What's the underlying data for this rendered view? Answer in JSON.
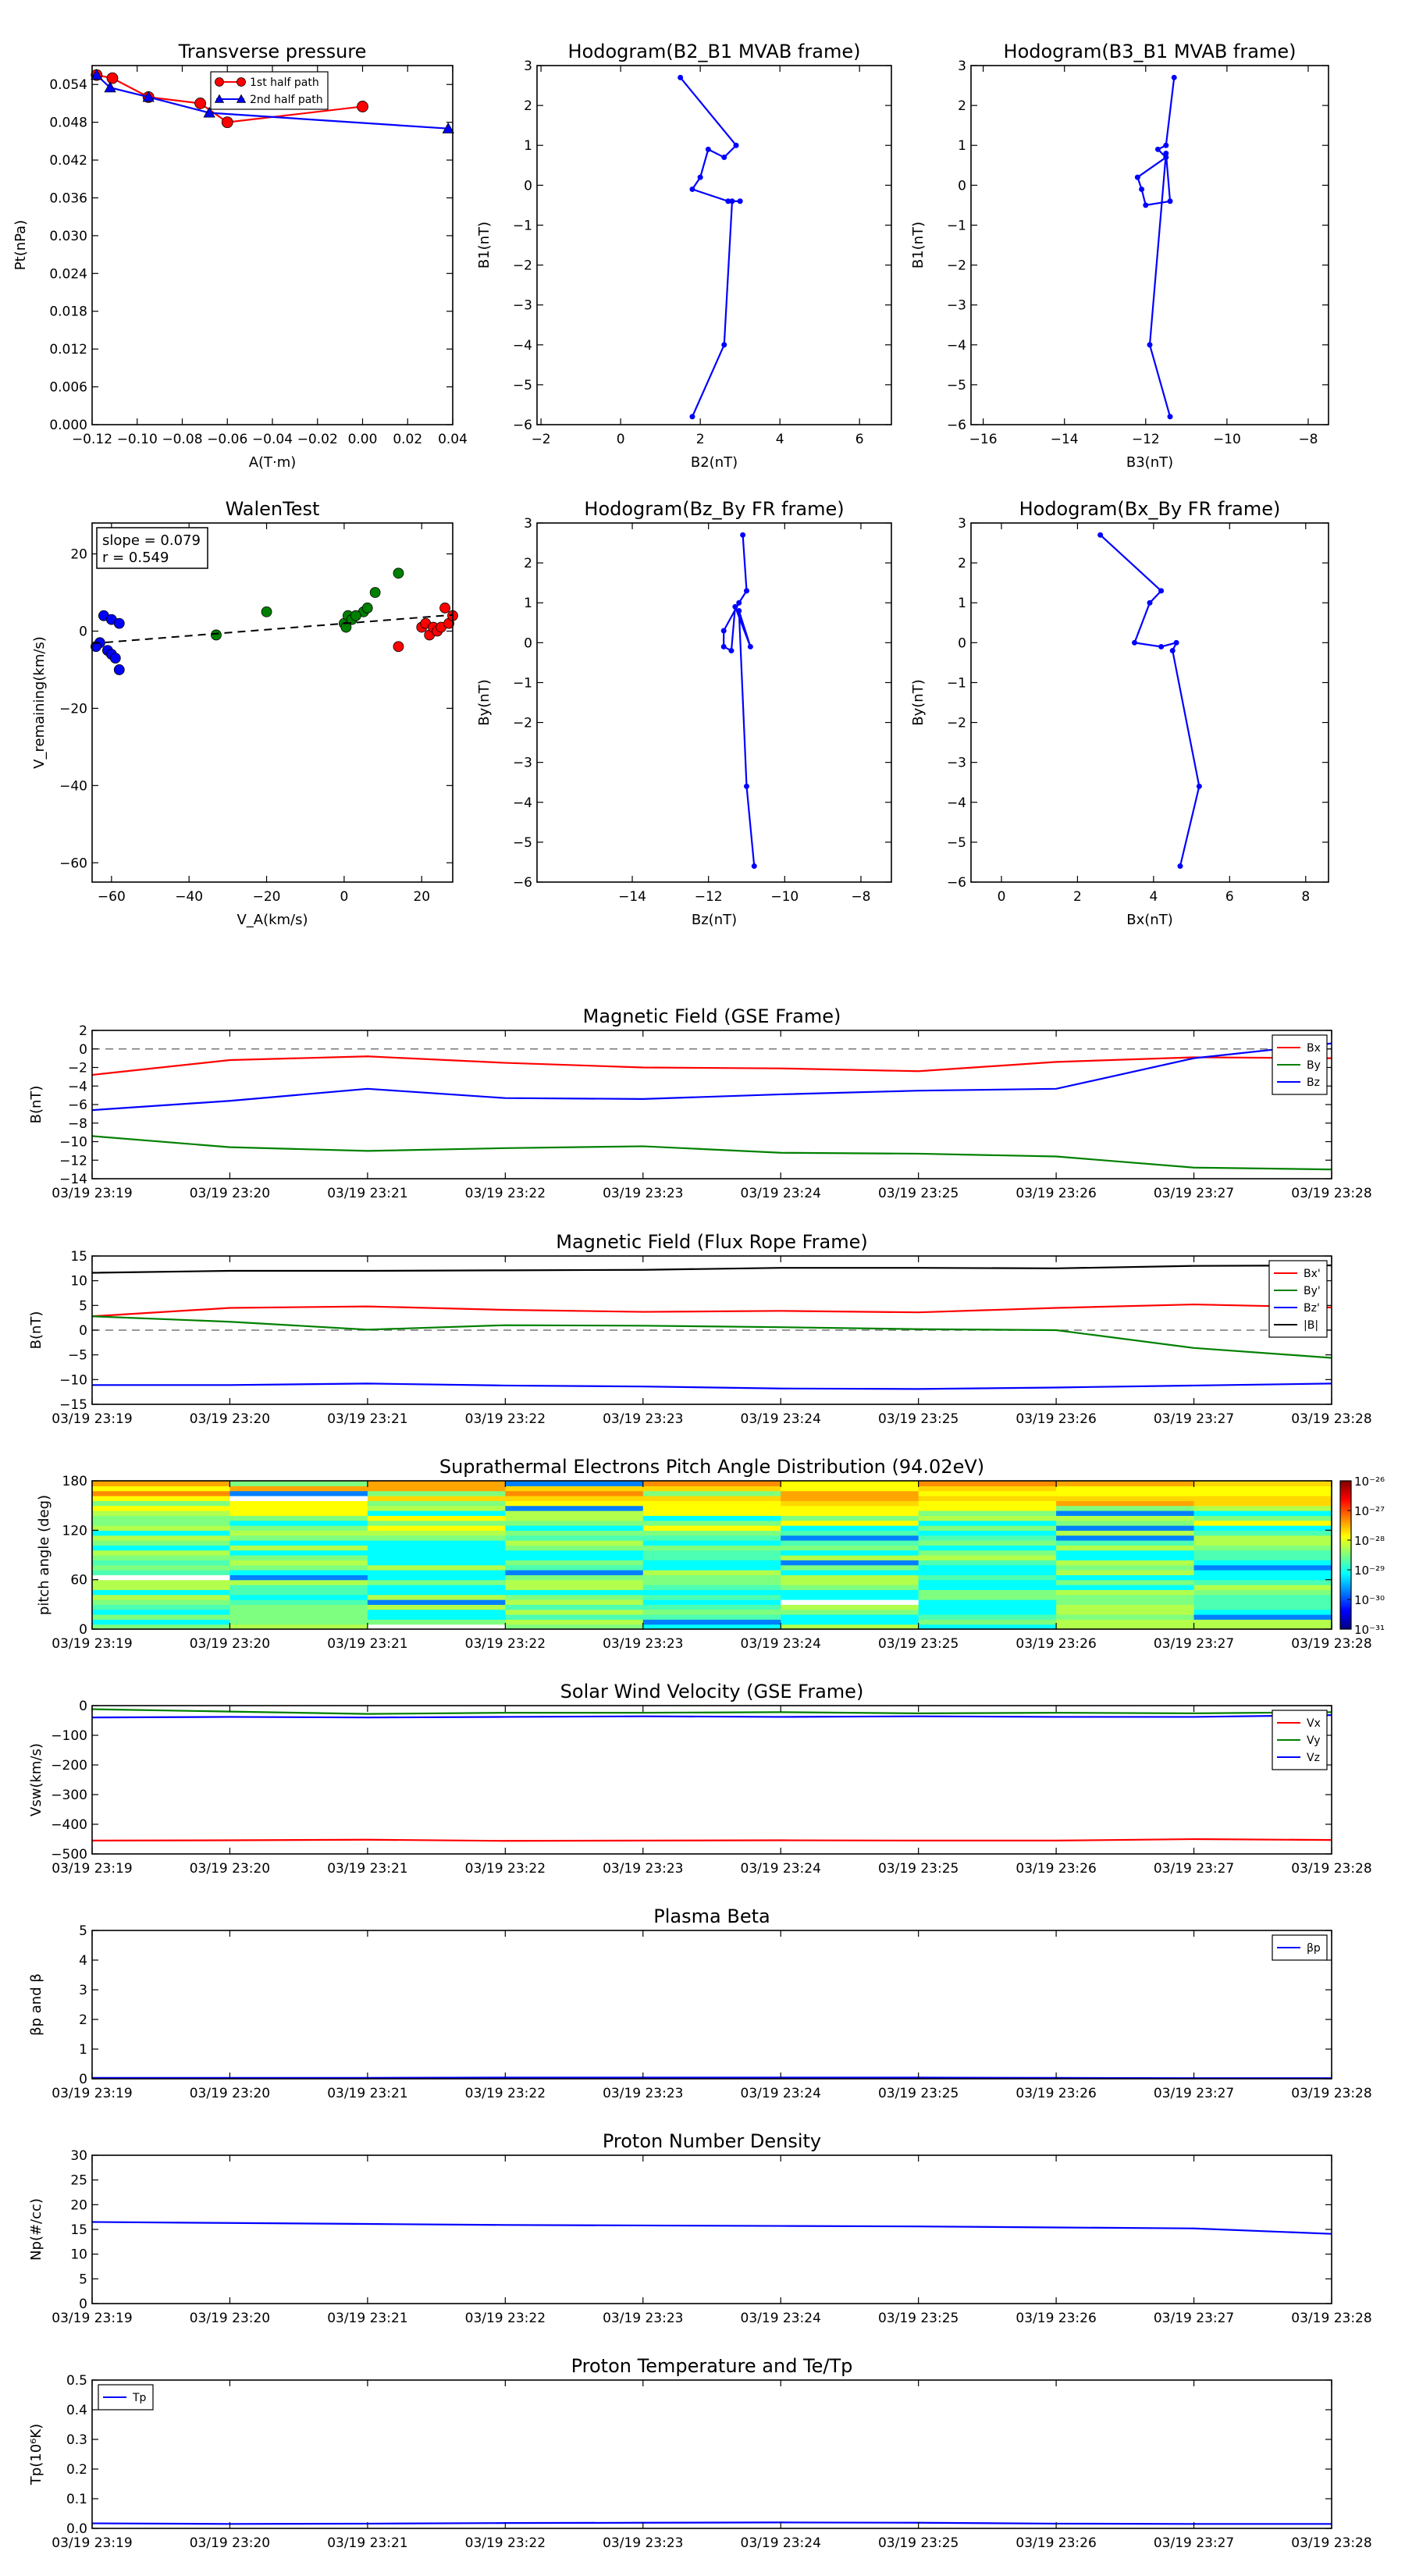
{
  "chart_data": [
    {
      "id": "pt",
      "type": "line",
      "title": "Transverse pressure",
      "xlabel": "A(T·m)",
      "ylabel": "Pt(nPa)",
      "xlim": [
        -0.12,
        0.04
      ],
      "ylim": [
        0.0,
        0.057
      ],
      "xticks": [
        -0.12,
        -0.1,
        -0.08,
        -0.06,
        -0.04,
        -0.02,
        0.0,
        0.02,
        0.04
      ],
      "xtick_labels": [
        "−0.12",
        "−0.10",
        "−0.08",
        "−0.06",
        "−0.04",
        "−0.02",
        "0.00",
        "0.02",
        "0.04"
      ],
      "yticks": [
        0.0,
        0.006,
        0.012,
        0.018,
        0.024,
        0.03,
        0.036,
        0.042,
        0.048,
        0.054
      ],
      "ytick_labels": [
        "0.000",
        "0.006",
        "0.012",
        "0.018",
        "0.024",
        "0.030",
        "0.036",
        "0.042",
        "0.048",
        "0.054"
      ],
      "legend": "top-center",
      "series": [
        {
          "name": "1st half path",
          "color": "#ff0000",
          "marker": "circle",
          "x": [
            -0.118,
            -0.111,
            -0.095,
            -0.072,
            -0.06,
            0.0
          ],
          "y": [
            0.0555,
            0.055,
            0.052,
            0.051,
            0.048,
            0.0505
          ]
        },
        {
          "name": "2nd half path",
          "color": "#0000ff",
          "marker": "triangle",
          "x": [
            -0.118,
            -0.112,
            -0.095,
            -0.068,
            0.038
          ],
          "y": [
            0.0555,
            0.0535,
            0.052,
            0.0495,
            0.047
          ]
        }
      ]
    },
    {
      "id": "h1",
      "type": "line",
      "title": "Hodogram(B2_B1 MVAB frame)",
      "xlabel": "B2(nT)",
      "ylabel": "B1(nT)",
      "xlim": [
        -2.1,
        6.8
      ],
      "ylim": [
        -6,
        3
      ],
      "xticks": [
        -2,
        0,
        2,
        4,
        6
      ],
      "xtick_labels": [
        "−2",
        "0",
        "2",
        "4",
        "6"
      ],
      "yticks": [
        -6,
        -5,
        -4,
        -3,
        -2,
        -1,
        0,
        1,
        2,
        3
      ],
      "ytick_labels": [
        "−6",
        "−5",
        "−4",
        "−3",
        "−2",
        "−1",
        "0",
        "1",
        "2",
        "3"
      ],
      "series": [
        {
          "color": "#0000ff",
          "x": [
            1.5,
            2.9,
            2.6,
            2.2,
            2.0,
            1.8,
            2.7,
            3.0,
            2.8,
            2.6,
            1.8
          ],
          "y": [
            2.7,
            1.0,
            0.7,
            0.9,
            0.2,
            -0.1,
            -0.4,
            -0.4,
            -0.4,
            -4.0,
            -5.8
          ]
        }
      ]
    },
    {
      "id": "h2",
      "type": "line",
      "title": "Hodogram(B3_B1 MVAB frame)",
      "xlabel": "B3(nT)",
      "ylabel": "B1(nT)",
      "xlim": [
        -16.3,
        -7.5
      ],
      "ylim": [
        -6,
        3
      ],
      "xticks": [
        -16,
        -14,
        -12,
        -10,
        -8
      ],
      "xtick_labels": [
        "−16",
        "−14",
        "−12",
        "−10",
        "−8"
      ],
      "yticks": [
        -6,
        -5,
        -4,
        -3,
        -2,
        -1,
        0,
        1,
        2,
        3
      ],
      "ytick_labels": [
        "−6",
        "−5",
        "−4",
        "−3",
        "−2",
        "−1",
        "0",
        "1",
        "2",
        "3"
      ],
      "series": [
        {
          "color": "#0000ff",
          "x": [
            -11.3,
            -11.5,
            -11.7,
            -11.5,
            -12.2,
            -12.1,
            -12.0,
            -11.4,
            -11.5,
            -11.9,
            -11.4
          ],
          "y": [
            2.7,
            1.0,
            0.9,
            0.7,
            0.2,
            -0.1,
            -0.5,
            -0.4,
            0.8,
            -4.0,
            -5.8
          ]
        }
      ]
    },
    {
      "id": "walen",
      "type": "scatter",
      "title": "WalenTest",
      "xlabel": "V_A(km/s)",
      "ylabel": "V_remaining(km/s)",
      "xlim": [
        -65,
        28
      ],
      "ylim": [
        -65,
        28
      ],
      "xticks": [
        -60,
        -40,
        -20,
        0,
        20
      ],
      "xtick_labels": [
        "−60",
        "−40",
        "−20",
        "0",
        "20"
      ],
      "yticks": [
        -60,
        -40,
        -20,
        0,
        20
      ],
      "ytick_labels": [
        "−60",
        "−40",
        "−20",
        "0",
        "20"
      ],
      "annotation_lines": [
        "slope = 0.079",
        "r = 0.549"
      ],
      "fit": {
        "slope": 0.079,
        "x": [
          -65,
          28
        ],
        "y": [
          -3.2,
          4.2
        ]
      },
      "series": [
        {
          "color": "#0000ff",
          "x": [
            -62,
            -60,
            -58,
            -63,
            -61,
            -60,
            -59,
            -58,
            -64
          ],
          "y": [
            4,
            3,
            2,
            -3,
            -5,
            -6,
            -7,
            -10,
            -4
          ]
        },
        {
          "color": "#008000",
          "x": [
            -33,
            -20,
            0,
            1,
            2,
            5,
            6,
            8,
            14,
            0.5,
            3
          ],
          "y": [
            -1,
            5,
            2,
            4,
            3,
            5,
            6,
            10,
            15,
            1,
            4
          ]
        },
        {
          "color": "#ff0000",
          "x": [
            14,
            20,
            21,
            22,
            23,
            24,
            25,
            26,
            27,
            28
          ],
          "y": [
            -4,
            1,
            2,
            -1,
            1,
            0,
            1,
            6,
            2,
            4
          ]
        }
      ]
    },
    {
      "id": "h3",
      "type": "line",
      "title": "Hodogram(Bz_By FR frame)",
      "xlabel": "Bz(nT)",
      "ylabel": "By(nT)",
      "xlim": [
        -16.5,
        -7.2
      ],
      "ylim": [
        -6,
        3
      ],
      "xticks": [
        -14,
        -12,
        -10,
        -8
      ],
      "xtick_labels": [
        "−14",
        "−12",
        "−10",
        "−8"
      ],
      "yticks": [
        -6,
        -5,
        -4,
        -3,
        -2,
        -1,
        0,
        1,
        2,
        3
      ],
      "ytick_labels": [
        "−6",
        "−5",
        "−4",
        "−3",
        "−2",
        "−1",
        "0",
        "1",
        "2",
        "3"
      ],
      "series": [
        {
          "color": "#0000ff",
          "x": [
            -11.1,
            -11.0,
            -11.2,
            -11.6,
            -11.6,
            -11.4,
            -11.3,
            -10.9,
            -11.2,
            -11.0,
            -10.8
          ],
          "y": [
            2.7,
            1.3,
            1.0,
            0.3,
            -0.1,
            -0.2,
            0.9,
            -0.1,
            0.8,
            -3.6,
            -5.6
          ]
        }
      ]
    },
    {
      "id": "h4",
      "type": "line",
      "title": "Hodogram(Bx_By FR frame)",
      "xlabel": "Bx(nT)",
      "ylabel": "By(nT)",
      "xlim": [
        -0.8,
        8.6
      ],
      "ylim": [
        -6,
        3
      ],
      "xticks": [
        0,
        2,
        4,
        6,
        8
      ],
      "xtick_labels": [
        "0",
        "2",
        "4",
        "6",
        "8"
      ],
      "yticks": [
        -6,
        -5,
        -4,
        -3,
        -2,
        -1,
        0,
        1,
        2,
        3
      ],
      "ytick_labels": [
        "−6",
        "−5",
        "−4",
        "−3",
        "−2",
        "−1",
        "0",
        "1",
        "2",
        "3"
      ],
      "series": [
        {
          "color": "#0000ff",
          "x": [
            2.6,
            4.2,
            3.9,
            3.5,
            4.2,
            4.6,
            4.5,
            5.2,
            4.7
          ],
          "y": [
            2.7,
            1.3,
            1.0,
            0.0,
            -0.1,
            0.0,
            -0.2,
            -3.6,
            -5.6
          ]
        }
      ]
    },
    {
      "id": "bgse",
      "type": "line",
      "title": "Magnetic Field (GSE Frame)",
      "ylabel": "B(nT)",
      "ylim": [
        -14,
        2
      ],
      "yticks": [
        -14,
        -12,
        -10,
        -8,
        -6,
        -4,
        -2,
        0,
        2
      ],
      "ytick_labels": [
        "−14",
        "−12",
        "−10",
        "−8",
        "−6",
        "−4",
        "−2",
        "0",
        "2"
      ],
      "xticks": [
        "03/19 23:19",
        "03/19 23:20",
        "03/19 23:21",
        "03/19 23:22",
        "03/19 23:23",
        "03/19 23:24",
        "03/19 23:25",
        "03/19 23:26",
        "03/19 23:27",
        "03/19 23:28"
      ],
      "zero_line": true,
      "legend": "top-right",
      "x": [
        0,
        1,
        2,
        3,
        4,
        5,
        6,
        7,
        8,
        9
      ],
      "series": [
        {
          "name": "Bx",
          "color": "#ff0000",
          "values": [
            -2.8,
            -1.2,
            -0.8,
            -1.5,
            -2.0,
            -2.1,
            -2.4,
            -1.4,
            -0.9,
            -1.0
          ]
        },
        {
          "name": "By",
          "color": "#008000",
          "values": [
            -9.4,
            -10.6,
            -11.0,
            -10.7,
            -10.5,
            -11.2,
            -11.3,
            -11.6,
            -12.8,
            -13.0
          ]
        },
        {
          "name": "Bz",
          "color": "#0000ff",
          "values": [
            -6.6,
            -5.6,
            -4.3,
            -5.3,
            -5.4,
            -4.9,
            -4.5,
            -4.3,
            -1.0,
            0.6
          ]
        }
      ]
    },
    {
      "id": "bfr",
      "type": "line",
      "title": "Magnetic Field (Flux Rope Frame)",
      "ylabel": "B(nT)",
      "ylim": [
        -15,
        15
      ],
      "yticks": [
        -15,
        -10,
        -5,
        0,
        5,
        10,
        15
      ],
      "ytick_labels": [
        "−15",
        "−10",
        "−5",
        "0",
        "5",
        "10",
        "15"
      ],
      "xticks": [
        "03/19 23:19",
        "03/19 23:20",
        "03/19 23:21",
        "03/19 23:22",
        "03/19 23:23",
        "03/19 23:24",
        "03/19 23:25",
        "03/19 23:26",
        "03/19 23:27",
        "03/19 23:28"
      ],
      "zero_line": true,
      "legend": "top-right",
      "x": [
        0,
        1,
        2,
        3,
        4,
        5,
        6,
        7,
        8,
        9
      ],
      "series": [
        {
          "name": "Bx'",
          "color": "#ff0000",
          "values": [
            2.8,
            4.5,
            4.8,
            4.1,
            3.7,
            3.9,
            3.6,
            4.5,
            5.2,
            4.6
          ]
        },
        {
          "name": "By'",
          "color": "#008000",
          "values": [
            2.8,
            1.7,
            0.1,
            1.0,
            0.9,
            0.6,
            0.2,
            0.0,
            -3.6,
            -5.6
          ]
        },
        {
          "name": "Bz'",
          "color": "#0000ff",
          "values": [
            -11.1,
            -11.1,
            -10.8,
            -11.2,
            -11.4,
            -11.8,
            -11.9,
            -11.6,
            -11.2,
            -10.8
          ]
        },
        {
          "name": "|B|",
          "color": "#000000",
          "values": [
            11.6,
            12.0,
            12.0,
            12.1,
            12.2,
            12.6,
            12.6,
            12.5,
            13.0,
            13.1
          ]
        }
      ]
    },
    {
      "id": "pad",
      "type": "heatmap",
      "title": "Suprathermal Electrons Pitch Angle Distribution (94.02eV)",
      "ylabel": "pitch angle (deg)",
      "ylim": [
        0,
        180
      ],
      "yticks": [
        0,
        60,
        120,
        180
      ],
      "ytick_labels": [
        "0",
        "60",
        "120",
        "180"
      ],
      "xticks": [
        "03/19 23:19",
        "03/19 23:20",
        "03/19 23:21",
        "03/19 23:22",
        "03/19 23:23",
        "03/19 23:24",
        "03/19 23:25",
        "03/19 23:26",
        "03/19 23:27",
        "03/19 23:28"
      ],
      "colorbar_ticks": [
        "10⁻²⁶",
        "10⁻²⁷",
        "10⁻²⁸",
        "10⁻²⁹",
        "10⁻³⁰",
        "10⁻³¹"
      ],
      "colorbar_exponents": [
        -26,
        -27,
        -28,
        -29,
        -30,
        -31
      ],
      "n_time": 9,
      "n_angle": 30
    },
    {
      "id": "vsw",
      "type": "line",
      "title": "Solar Wind Velocity (GSE Frame)",
      "ylabel": "Vsw(km/s)",
      "ylim": [
        -500,
        0
      ],
      "yticks": [
        -500,
        -400,
        -300,
        -200,
        -100,
        0
      ],
      "ytick_labels": [
        "−500",
        "−400",
        "−300",
        "−200",
        "−100",
        "0"
      ],
      "xticks": [
        "03/19 23:19",
        "03/19 23:20",
        "03/19 23:21",
        "03/19 23:22",
        "03/19 23:23",
        "03/19 23:24",
        "03/19 23:25",
        "03/19 23:26",
        "03/19 23:27",
        "03/19 23:28"
      ],
      "legend": "top-right",
      "x": [
        0,
        1,
        2,
        3,
        4,
        5,
        6,
        7,
        8,
        9
      ],
      "series": [
        {
          "name": "Vx",
          "color": "#ff0000",
          "values": [
            -455,
            -454,
            -452,
            -456,
            -455,
            -454,
            -455,
            -455,
            -450,
            -453
          ]
        },
        {
          "name": "Vy",
          "color": "#008000",
          "values": [
            -12,
            -20,
            -28,
            -24,
            -24,
            -22,
            -26,
            -24,
            -26,
            -22
          ]
        },
        {
          "name": "Vz",
          "color": "#0000ff",
          "values": [
            -40,
            -38,
            -40,
            -38,
            -36,
            -38,
            -36,
            -38,
            -38,
            -32
          ]
        }
      ]
    },
    {
      "id": "beta",
      "type": "line",
      "title": "Plasma Beta",
      "ylabel": "βp and β",
      "ylim": [
        0,
        5
      ],
      "yticks": [
        0,
        1,
        2,
        3,
        4,
        5
      ],
      "ytick_labels": [
        "0",
        "1",
        "2",
        "3",
        "4",
        "5"
      ],
      "xticks": [
        "03/19 23:19",
        "03/19 23:20",
        "03/19 23:21",
        "03/19 23:22",
        "03/19 23:23",
        "03/19 23:24",
        "03/19 23:25",
        "03/19 23:26",
        "03/19 23:27",
        "03/19 23:28"
      ],
      "legend": "top-right",
      "x": [
        0,
        1,
        2,
        3,
        4,
        5,
        6,
        7,
        8,
        9
      ],
      "series": [
        {
          "name": "βp",
          "color": "#0000ff",
          "values": [
            0.03,
            0.03,
            0.03,
            0.04,
            0.04,
            0.04,
            0.04,
            0.03,
            0.02,
            0.02
          ]
        }
      ]
    },
    {
      "id": "np",
      "type": "line",
      "title": "Proton Number Density",
      "ylabel": "Np(#/cc)",
      "ylim": [
        0,
        30
      ],
      "yticks": [
        0,
        5,
        10,
        15,
        20,
        25,
        30
      ],
      "ytick_labels": [
        "0",
        "5",
        "10",
        "15",
        "20",
        "25",
        "30"
      ],
      "xticks": [
        "03/19 23:19",
        "03/19 23:20",
        "03/19 23:21",
        "03/19 23:22",
        "03/19 23:23",
        "03/19 23:24",
        "03/19 23:25",
        "03/19 23:26",
        "03/19 23:27",
        "03/19 23:28"
      ],
      "x": [
        0,
        1,
        2,
        3,
        4,
        5,
        6,
        7,
        8,
        9
      ],
      "series": [
        {
          "color": "#0000ff",
          "values": [
            16.5,
            16.3,
            16.1,
            15.9,
            15.8,
            15.7,
            15.6,
            15.4,
            15.2,
            14.1
          ]
        }
      ]
    },
    {
      "id": "tp",
      "type": "line",
      "title": "Proton Temperature and Te/Tp",
      "ylabel": "Tp(10⁶K)",
      "ylim": [
        0,
        0.5
      ],
      "yticks": [
        0,
        0.1,
        0.2,
        0.3,
        0.4,
        0.5
      ],
      "ytick_labels": [
        "0.0",
        "0.1",
        "0.2",
        "0.3",
        "0.4",
        "0.5"
      ],
      "xticks": [
        "03/19 23:19",
        "03/19 23:20",
        "03/19 23:21",
        "03/19 23:22",
        "03/19 23:23",
        "03/19 23:24",
        "03/19 23:25",
        "03/19 23:26",
        "03/19 23:27",
        "03/19 23:28"
      ],
      "legend": "top-left",
      "x": [
        0,
        1,
        2,
        3,
        4,
        5,
        6,
        7,
        8,
        9
      ],
      "series": [
        {
          "name": "Tp",
          "color": "#0000ff",
          "values": [
            0.017,
            0.015,
            0.016,
            0.018,
            0.019,
            0.02,
            0.019,
            0.016,
            0.015,
            0.015
          ]
        }
      ]
    }
  ]
}
